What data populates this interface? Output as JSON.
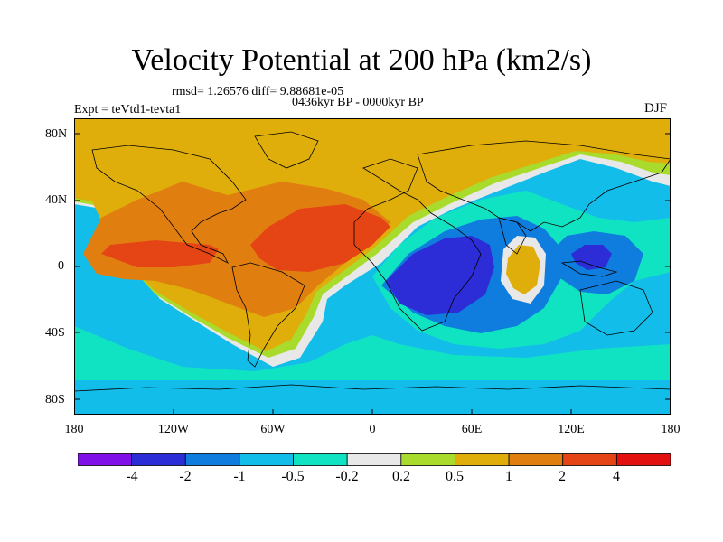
{
  "title": "Velocity Potential at 200 hPa (km2/s)",
  "stats": "rmsd= 1.26576 diff= 9.88681e-05",
  "period": "0436kyr BP - 0000kyr BP",
  "experiment": "Expt = teVtd1-tevta1",
  "season": "DJF",
  "lat_labels": [
    "80N",
    "40N",
    "0",
    "40S",
    "80S"
  ],
  "lon_labels": [
    "180",
    "120W",
    "60W",
    "0",
    "60E",
    "120E",
    "180"
  ],
  "colorbar": {
    "labels": [
      "-4",
      "-2",
      "-1",
      "-0.5",
      "-0.2",
      "0.2",
      "0.5",
      "1",
      "2",
      "4"
    ],
    "colors": [
      "#7F10E8",
      "#2D2DD8",
      "#0E7DDE",
      "#13BDEA",
      "#10E3C2",
      "#E8E8E8",
      "#A8DB2B",
      "#E0AE0B",
      "#E07F10",
      "#E54515",
      "#E31010"
    ]
  }
}
